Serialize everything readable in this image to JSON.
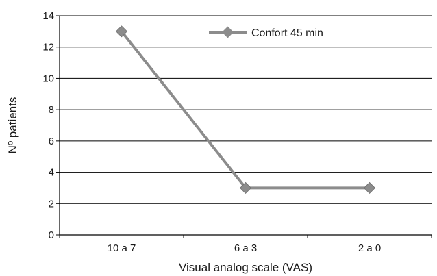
{
  "chart_data": {
    "type": "line",
    "categories": [
      "10 a 7",
      "6 a 3",
      "2 a 0"
    ],
    "series": [
      {
        "name": "Confort 45 min",
        "values": [
          13,
          3,
          3
        ]
      }
    ],
    "xlabel": "Visual analog scale (VAS)",
    "ylabel": "Nº patients",
    "ylim": [
      0,
      14
    ],
    "yticks": [
      0,
      2,
      4,
      6,
      8,
      10,
      12,
      14
    ],
    "grid": true,
    "legend_position": "top-right",
    "colors": {
      "series": "#8c8c8c",
      "grid": "#000000",
      "axis": "#000000"
    }
  }
}
